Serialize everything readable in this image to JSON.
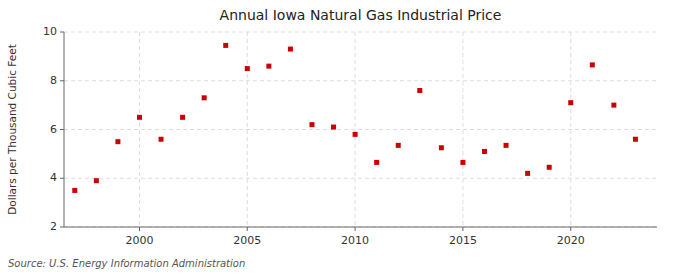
{
  "chart_data": {
    "type": "scatter",
    "title": "Annual Iowa Natural Gas Industrial Price",
    "y_label": "Dollars per Thousand Cubic Feet",
    "annotations": [
      "Source: U.S. Energy Information Administration"
    ],
    "x": [
      1997,
      1998,
      1999,
      2000,
      2001,
      2002,
      2003,
      2004,
      2005,
      2006,
      2007,
      2008,
      2009,
      2010,
      2011,
      2012,
      2013,
      2014,
      2015,
      2016,
      2017,
      2018,
      2019,
      2020,
      2021,
      2022,
      2023
    ],
    "values": [
      3.5,
      3.9,
      5.5,
      6.5,
      5.6,
      6.5,
      7.3,
      9.45,
      8.5,
      8.6,
      9.3,
      6.2,
      6.1,
      5.8,
      4.65,
      5.35,
      7.6,
      5.25,
      4.65,
      5.1,
      5.35,
      4.2,
      4.45,
      7.1,
      8.65,
      7.0,
      5.6
    ],
    "color": "#cc0000",
    "marker": "square",
    "xlim": [
      1996.5,
      2024
    ],
    "xticks": [
      2000,
      2005,
      2010,
      2015,
      2020
    ],
    "ylim": [
      2,
      10
    ],
    "yticks": [
      2,
      4,
      6,
      8,
      10
    ],
    "grid": true
  }
}
